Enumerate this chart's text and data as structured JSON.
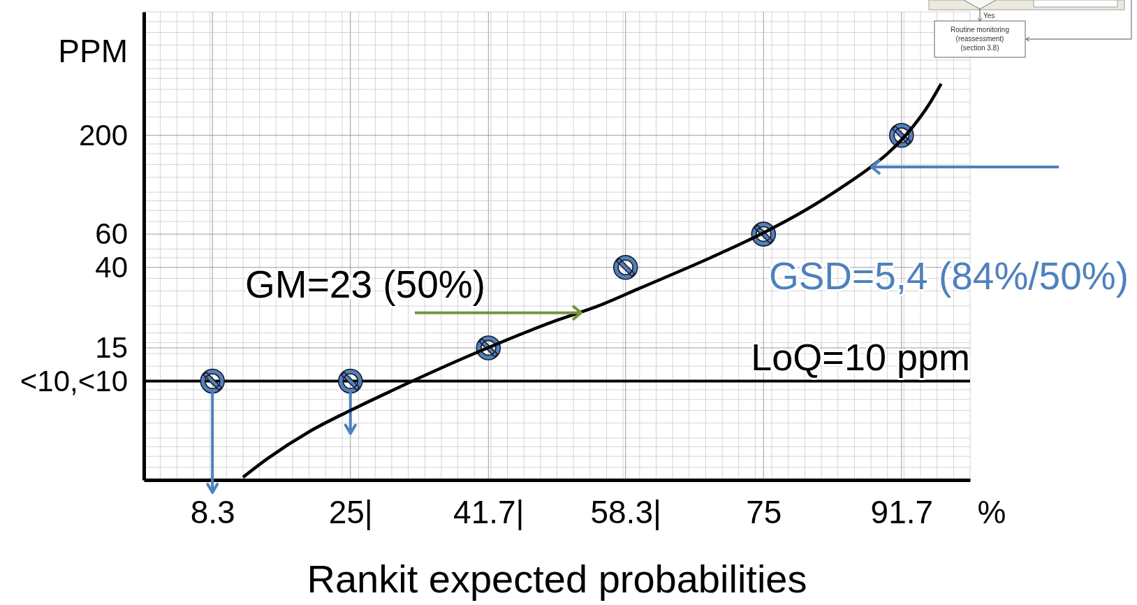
{
  "chart_data": {
    "type": "scatter",
    "xlabel": "Rankit expected probabilities",
    "ylabel": "PPM",
    "x": [
      8.3,
      25,
      41.7,
      58.3,
      75,
      91.7
    ],
    "series": [
      {
        "color": "#4f81bd",
        "values": [
          10,
          10,
          15,
          40,
          60,
          200
        ]
      },
      {
        "type": "line",
        "color": "#000000",
        "x": [
          12,
          15,
          20,
          25,
          30,
          40,
          50,
          55,
          60,
          70,
          75,
          80,
          85,
          88,
          90,
          93,
          95,
          96.5
        ],
        "values": [
          3.1,
          3.9,
          5.4,
          7,
          8.9,
          14,
          21,
          25,
          31,
          48,
          61,
          80,
          110,
          136,
          160,
          220,
          290,
          375
        ]
      }
    ],
    "log": "y",
    "grid": true,
    "xlim": [
      0,
      100
    ],
    "xticks": [
      {
        "value": 0,
        "label": null
      },
      {
        "value": 2,
        "label": null
      },
      {
        "value": 4,
        "label": null
      },
      {
        "value": 6,
        "label": null
      },
      {
        "value": 8,
        "label": null
      },
      8.3,
      {
        "value": 10,
        "label": null
      },
      {
        "value": 12,
        "label": null
      },
      {
        "value": 14,
        "label": null
      },
      {
        "value": 16,
        "label": null
      },
      {
        "value": 18,
        "label": null
      },
      {
        "value": 20,
        "label": null
      },
      {
        "value": 22,
        "label": null
      },
      {
        "value": 24,
        "label": null
      },
      {
        "value": 25,
        "label": "25|"
      },
      {
        "value": 26,
        "label": null
      },
      {
        "value": 28,
        "label": null
      },
      {
        "value": 30,
        "label": null
      },
      {
        "value": 32,
        "label": null
      },
      {
        "value": 34,
        "label": null
      },
      {
        "value": 36,
        "label": null
      },
      {
        "value": 38,
        "label": null
      },
      {
        "value": 40,
        "label": null
      },
      {
        "value": 41.7,
        "label": "41.7|"
      },
      {
        "value": 42,
        "label": null
      },
      {
        "value": 44,
        "label": null
      },
      {
        "value": 46,
        "label": null
      },
      {
        "value": 48,
        "label": null
      },
      {
        "value": 50,
        "label": null
      },
      {
        "value": 52,
        "label": null
      },
      {
        "value": 54,
        "label": null
      },
      {
        "value": 56,
        "label": null
      },
      {
        "value": 58,
        "label": null
      },
      {
        "value": 58.3,
        "label": "58.3|"
      },
      {
        "value": 60,
        "label": null
      },
      {
        "value": 62,
        "label": null
      },
      {
        "value": 64,
        "label": null
      },
      {
        "value": 66,
        "label": null
      },
      {
        "value": 68,
        "label": null
      },
      {
        "value": 70,
        "label": null
      },
      {
        "value": 72,
        "label": null
      },
      {
        "value": 74,
        "label": null
      },
      75,
      {
        "value": 76,
        "label": null
      },
      {
        "value": 78,
        "label": null
      },
      {
        "value": 80,
        "label": null
      },
      {
        "value": 82,
        "label": null
      },
      {
        "value": 84,
        "label": null
      },
      {
        "value": 86,
        "label": null
      },
      {
        "value": 88,
        "label": null
      },
      {
        "value": 90,
        "label": null
      },
      91.7,
      {
        "value": 92,
        "label": null
      },
      {
        "value": 94,
        "label": null
      },
      {
        "value": 96,
        "label": null
      },
      {
        "value": 98,
        "label": null
      },
      {
        "value": 100,
        "label": null
      }
    ],
    "ylim": [
      3,
      900
    ],
    "yticks": [
      {
        "value": 3,
        "label": null
      },
      {
        "value": 3.5,
        "label": null
      },
      {
        "value": 4,
        "label": null
      },
      {
        "value": 4.5,
        "label": null
      },
      {
        "value": 5,
        "label": null
      },
      {
        "value": 6,
        "label": null
      },
      {
        "value": 7,
        "label": null
      },
      {
        "value": 8,
        "label": null
      },
      {
        "value": 9,
        "label": null
      },
      {
        "value": 10,
        "label": "<10,<10"
      },
      {
        "value": 12,
        "label": null
      },
      {
        "value": 14,
        "label": null
      },
      15,
      {
        "value": 16,
        "label": null
      },
      {
        "value": 18,
        "label": null
      },
      {
        "value": 20,
        "label": null
      },
      {
        "value": 25,
        "label": null
      },
      {
        "value": 30,
        "label": null
      },
      {
        "value": 35,
        "label": null
      },
      40,
      {
        "value": 45,
        "label": null
      },
      {
        "value": 50,
        "label": null
      },
      60,
      {
        "value": 70,
        "label": null
      },
      {
        "value": 80,
        "label": null
      },
      {
        "value": 90,
        "label": null
      },
      {
        "value": 100,
        "label": null
      },
      {
        "value": 120,
        "label": null
      },
      {
        "value": 140,
        "label": null
      },
      {
        "value": 160,
        "label": null
      },
      {
        "value": 180,
        "label": null
      },
      200,
      {
        "value": 250,
        "label": null
      },
      {
        "value": 300,
        "label": null
      },
      {
        "value": 350,
        "label": null
      },
      {
        "value": 400,
        "label": null
      },
      {
        "value": 450,
        "label": null
      },
      {
        "value": 500,
        "label": null
      },
      {
        "value": 600,
        "label": null
      },
      {
        "value": 700,
        "label": null
      },
      {
        "value": 800,
        "label": null
      },
      {
        "value": 900,
        "label": null
      }
    ],
    "ref_lines": [
      {
        "axis": "y",
        "value": 10,
        "label": "LoQ=10 ppm",
        "color": "#000000"
      }
    ],
    "annotations": [
      {
        "text": "GM=23 (50%)",
        "x": 53,
        "y": 23
      },
      {
        "text": "GSD=5,4 (84%/50%)",
        "x": 88,
        "y": 136
      },
      "%",
      "Yes",
      "Routine monitoring",
      "(reassessment)",
      "(section 3.8)"
    ]
  }
}
